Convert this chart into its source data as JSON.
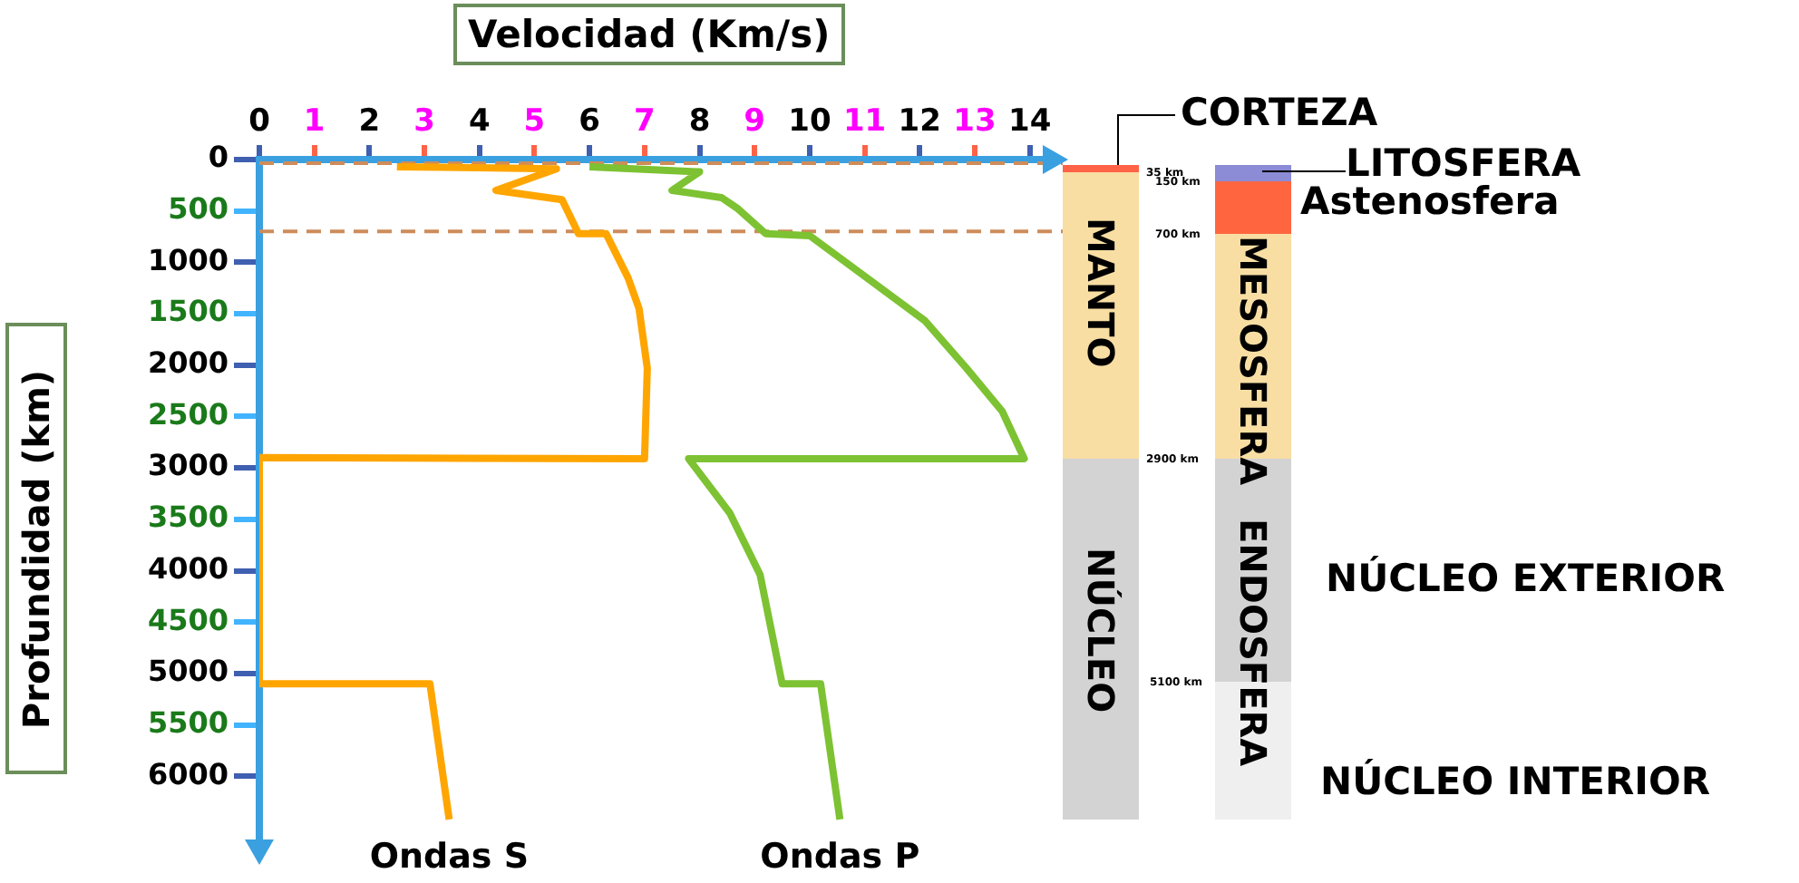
{
  "chart_data": {
    "type": "line",
    "title": "Velocidad (Km/s)",
    "ylabel": "Profundidad (km)",
    "xlim": [
      0,
      14.5
    ],
    "xticks": [
      0,
      1,
      2,
      3,
      4,
      5,
      6,
      7,
      8,
      9,
      10,
      11,
      12,
      13,
      14
    ],
    "ylim": [
      6650,
      0
    ],
    "yticks": [
      0,
      500,
      1000,
      1500,
      2000,
      2500,
      3000,
      3500,
      4000,
      4500,
      5000,
      5500,
      6000
    ],
    "grid": false,
    "legend": false,
    "marker": "none",
    "line_style": "solid",
    "series": [
      {
        "name": "Ondas S",
        "color": "#ffa500",
        "x": [
          2.5,
          5.4,
          4.3,
          5.5,
          5.8,
          6.3,
          6.7,
          6.9,
          7.05,
          7.0,
          0,
          0,
          3.1,
          3.45
        ],
        "values": [
          70,
          90,
          300,
          390,
          720,
          720,
          1150,
          1450,
          2030,
          2910,
          2900,
          5100,
          5100,
          6420
        ]
      },
      {
        "name": "Ondas P",
        "color": "#7dc232",
        "x": [
          6.0,
          8.0,
          7.5,
          8.4,
          8.7,
          9.2,
          10.0,
          12.1,
          12.85,
          13.5,
          13.9,
          7.8,
          8.55,
          9.1,
          9.5,
          10.2,
          10.55
        ],
        "values": [
          70,
          120,
          300,
          370,
          480,
          720,
          740,
          1570,
          2030,
          2450,
          2910,
          2910,
          3440,
          4040,
          5100,
          5100,
          6420
        ]
      }
    ],
    "ref_lines": [
      {
        "axis": "y",
        "value": 35,
        "color": "#cd8c5a",
        "line_style": "dashed"
      },
      {
        "axis": "y",
        "value": 700,
        "color": "#cd8c5a",
        "line_style": "dashed"
      }
    ],
    "annotations": [
      "CORTEZA",
      "LITOSFERA",
      "Astenosfera",
      "MANTO",
      "MESOSFERA",
      "NÚCLEO",
      "ENDOSFERA",
      "NÚCLEO EXTERIOR",
      "NÚCLEO INTERIOR",
      "35 km",
      "150 km",
      "700 km",
      "2900 km",
      "5100 km"
    ]
  }
}
